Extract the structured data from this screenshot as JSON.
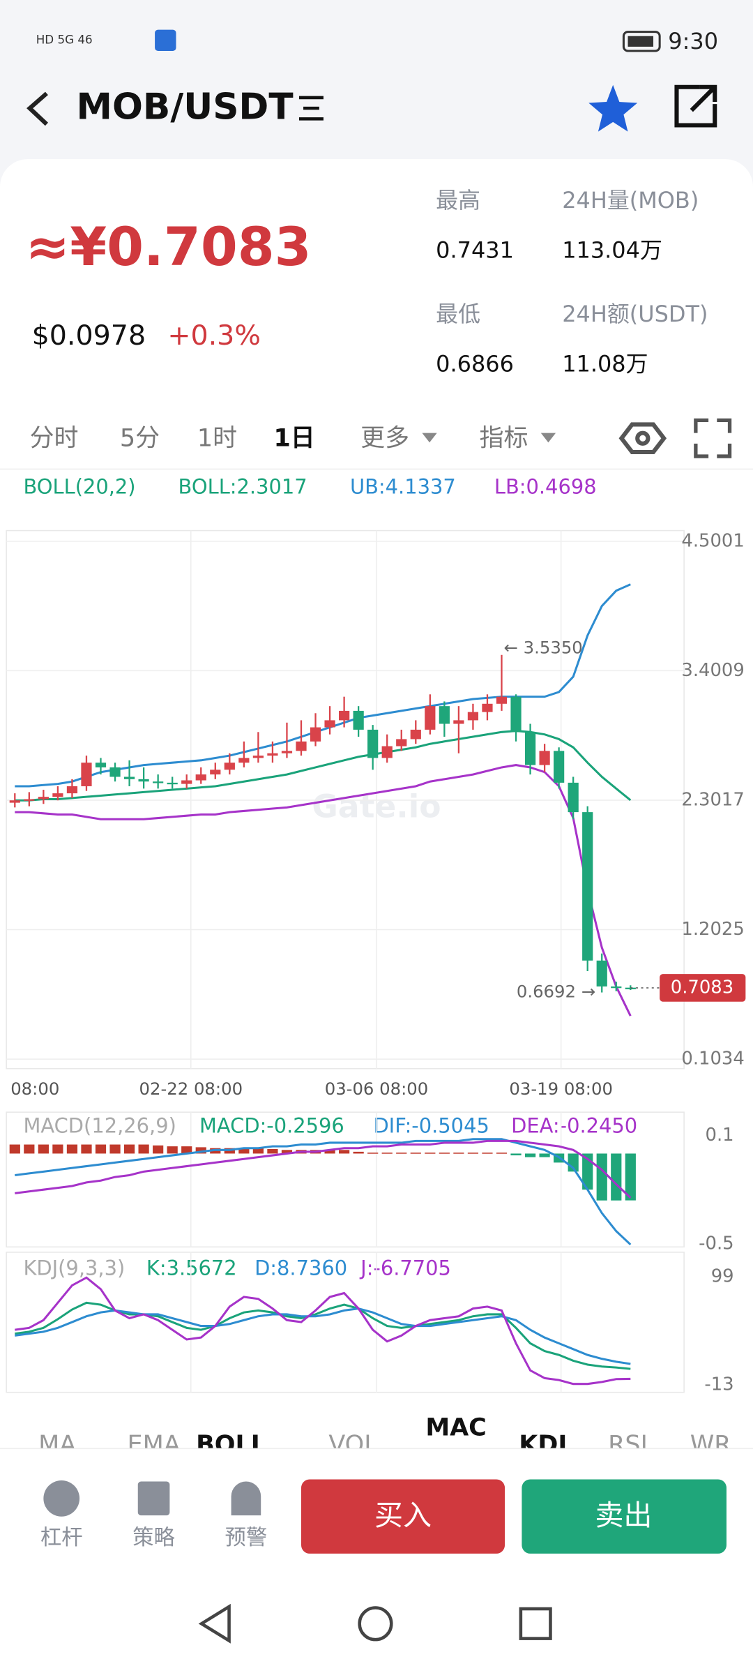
{
  "status_bar": {
    "time": "9:30"
  },
  "header": {
    "title": "MOB/USDT"
  },
  "ticker": {
    "price": "≈¥0.7083",
    "usd_price": "$0.0978",
    "change": "+0.3%",
    "stats": [
      {
        "label": "最高",
        "value": "0.7431"
      },
      {
        "label": "24H量(MOB)",
        "value": "113.04万"
      },
      {
        "label": "最低",
        "value": "0.6866"
      },
      {
        "label": "24H额(USDT)",
        "value": "11.08万"
      }
    ]
  },
  "timeframe_tabs": [
    "分时",
    "5分",
    "1时",
    "1日",
    "更多",
    "指标"
  ],
  "chart": {
    "type": "candlestick",
    "legend": [
      "BOLL(20,2)",
      "BOLL:2.3017",
      "UB:4.1337",
      "LB:0.4698"
    ],
    "open": [
      2.28,
      2.3,
      2.31,
      2.33,
      2.36,
      2.42,
      2.62,
      2.58,
      2.5,
      2.48,
      2.46,
      2.45,
      2.44,
      2.47,
      2.52,
      2.56,
      2.62,
      2.66,
      2.68,
      2.7,
      2.72,
      2.8,
      2.92,
      2.98,
      3.06,
      2.9,
      2.66,
      2.76,
      2.82,
      2.9,
      3.1,
      2.95,
      2.98,
      3.05,
      3.12,
      3.18,
      2.88,
      2.6,
      2.72,
      2.45,
      2.2,
      0.94,
      0.72,
      0.71
    ],
    "high": [
      2.36,
      2.37,
      2.39,
      2.42,
      2.48,
      2.68,
      2.66,
      2.62,
      2.64,
      2.58,
      2.52,
      2.5,
      2.52,
      2.58,
      2.62,
      2.7,
      2.8,
      2.88,
      2.8,
      2.96,
      2.98,
      3.04,
      3.1,
      3.18,
      3.1,
      2.94,
      2.86,
      2.9,
      2.98,
      3.2,
      3.14,
      3.1,
      3.12,
      3.2,
      3.535,
      3.2,
      2.95,
      2.78,
      2.75,
      2.5,
      2.25,
      1.0,
      0.76,
      0.73
    ],
    "low": [
      2.24,
      2.25,
      2.27,
      2.3,
      2.32,
      2.38,
      2.52,
      2.46,
      2.42,
      2.4,
      2.4,
      2.4,
      2.4,
      2.44,
      2.48,
      2.52,
      2.58,
      2.62,
      2.62,
      2.66,
      2.68,
      2.76,
      2.86,
      2.92,
      2.84,
      2.56,
      2.62,
      2.72,
      2.78,
      2.86,
      2.84,
      2.7,
      2.9,
      2.98,
      3.06,
      2.8,
      2.52,
      2.54,
      2.4,
      2.14,
      0.85,
      0.6692,
      0.68,
      0.69
    ],
    "close": [
      2.3,
      2.31,
      2.33,
      2.36,
      2.42,
      2.62,
      2.58,
      2.5,
      2.48,
      2.46,
      2.45,
      2.44,
      2.47,
      2.52,
      2.56,
      2.62,
      2.66,
      2.68,
      2.7,
      2.72,
      2.8,
      2.92,
      2.98,
      3.06,
      2.9,
      2.66,
      2.76,
      2.82,
      2.9,
      3.1,
      2.95,
      2.98,
      3.05,
      3.12,
      3.18,
      2.88,
      2.6,
      2.72,
      2.45,
      2.2,
      0.94,
      0.72,
      0.71,
      0.7083
    ],
    "boll_mid": [
      2.3,
      2.3,
      2.31,
      2.31,
      2.32,
      2.33,
      2.34,
      2.35,
      2.36,
      2.37,
      2.38,
      2.39,
      2.4,
      2.41,
      2.42,
      2.44,
      2.46,
      2.48,
      2.5,
      2.52,
      2.55,
      2.58,
      2.61,
      2.64,
      2.67,
      2.69,
      2.71,
      2.73,
      2.75,
      2.78,
      2.8,
      2.82,
      2.84,
      2.86,
      2.88,
      2.89,
      2.88,
      2.86,
      2.82,
      2.75,
      2.62,
      2.5,
      2.4,
      2.3017
    ],
    "boll_upper": [
      2.42,
      2.42,
      2.43,
      2.44,
      2.46,
      2.5,
      2.54,
      2.56,
      2.58,
      2.6,
      2.61,
      2.62,
      2.63,
      2.64,
      2.66,
      2.68,
      2.71,
      2.74,
      2.77,
      2.8,
      2.84,
      2.88,
      2.92,
      2.96,
      3.0,
      3.02,
      3.04,
      3.06,
      3.08,
      3.1,
      3.12,
      3.14,
      3.16,
      3.17,
      3.18,
      3.18,
      3.18,
      3.18,
      3.22,
      3.35,
      3.7,
      3.95,
      4.08,
      4.1337
    ],
    "boll_lower": [
      2.2,
      2.2,
      2.19,
      2.18,
      2.18,
      2.16,
      2.14,
      2.14,
      2.14,
      2.14,
      2.15,
      2.16,
      2.17,
      2.18,
      2.18,
      2.2,
      2.21,
      2.22,
      2.23,
      2.24,
      2.26,
      2.28,
      2.3,
      2.32,
      2.34,
      2.36,
      2.38,
      2.4,
      2.42,
      2.46,
      2.48,
      2.5,
      2.52,
      2.55,
      2.58,
      2.6,
      2.58,
      2.54,
      2.42,
      2.15,
      1.54,
      1.05,
      0.72,
      0.4698
    ],
    "ylim": [
      0.1034,
      4.5001
    ],
    "yticks": [
      4.5001,
      3.4009,
      2.3017,
      1.2025,
      0.1034
    ],
    "x_labels": [
      "08:00",
      "02-22 08:00",
      "03-06 08:00",
      "03-19 08:00"
    ],
    "max_annotation": {
      "value": 3.535,
      "label": "← 3.5350"
    },
    "min_annotation": {
      "value": 0.6692,
      "label": "0.6692 →"
    },
    "last_price": 0.7083,
    "watermark": "Gate.io"
  },
  "macd": {
    "legend": [
      "MACD(12,26,9)",
      "MACD:-0.2596",
      "DIF:-0.5045",
      "DEA:-0.2450"
    ],
    "histogram": [
      0.05,
      0.05,
      0.05,
      0.05,
      0.05,
      0.05,
      0.05,
      0.05,
      0.05,
      0.05,
      0.045,
      0.04,
      0.04,
      0.035,
      0.03,
      0.03,
      0.03,
      0.03,
      0.025,
      0.02,
      0.02,
      0.02,
      0.02,
      0.02,
      0.01,
      0.005,
      0.005,
      0.005,
      0.005,
      0.005,
      0.005,
      0.005,
      0.005,
      0.005,
      0.005,
      -0.01,
      -0.02,
      -0.02,
      -0.05,
      -0.1,
      -0.2,
      -0.26,
      -0.26,
      -0.2596
    ],
    "dif": [
      -0.12,
      -0.11,
      -0.1,
      -0.09,
      -0.08,
      -0.07,
      -0.06,
      -0.05,
      -0.04,
      -0.03,
      -0.02,
      -0.01,
      0,
      0.01,
      0.02,
      0.02,
      0.03,
      0.03,
      0.04,
      0.04,
      0.05,
      0.05,
      0.06,
      0.06,
      0.06,
      0.06,
      0.06,
      0.06,
      0.07,
      0.07,
      0.07,
      0.07,
      0.08,
      0.08,
      0.08,
      0.06,
      0.04,
      0.02,
      -0.02,
      -0.08,
      -0.2,
      -0.33,
      -0.43,
      -0.5045
    ],
    "dea": [
      -0.22,
      -0.21,
      -0.2,
      -0.19,
      -0.18,
      -0.16,
      -0.15,
      -0.13,
      -0.12,
      -0.1,
      -0.09,
      -0.08,
      -0.07,
      -0.06,
      -0.05,
      -0.04,
      -0.03,
      -0.02,
      -0.01,
      0,
      0.01,
      0.01,
      0.02,
      0.03,
      0.03,
      0.04,
      0.04,
      0.05,
      0.05,
      0.05,
      0.06,
      0.06,
      0.06,
      0.07,
      0.07,
      0.07,
      0.06,
      0.05,
      0.04,
      0.02,
      -0.03,
      -0.09,
      -0.17,
      -0.245
    ],
    "ylim": [
      -0.5,
      0.1
    ],
    "yticks": [
      0.1,
      -0.5
    ]
  },
  "kdj": {
    "legend": [
      "KDJ(9,3,3)",
      "K:3.5672",
      "D:8.7360",
      "J:-6.7705"
    ],
    "k": [
      40,
      42,
      46,
      55,
      65,
      72,
      70,
      64,
      60,
      60,
      58,
      52,
      46,
      44,
      48,
      56,
      62,
      64,
      62,
      58,
      56,
      60,
      66,
      70,
      66,
      56,
      48,
      46,
      48,
      50,
      52,
      54,
      58,
      60,
      60,
      46,
      30,
      22,
      18,
      12,
      8,
      6,
      5,
      3.5672
    ],
    "d": [
      38,
      40,
      42,
      46,
      52,
      58,
      62,
      64,
      62,
      60,
      60,
      56,
      52,
      48,
      48,
      50,
      54,
      58,
      60,
      60,
      58,
      58,
      60,
      64,
      66,
      62,
      56,
      50,
      48,
      48,
      50,
      52,
      54,
      56,
      58,
      54,
      44,
      36,
      30,
      24,
      18,
      14,
      11,
      8.736
    ],
    "j": [
      44,
      46,
      54,
      72,
      90,
      98,
      86,
      64,
      56,
      60,
      54,
      44,
      34,
      36,
      48,
      68,
      78,
      76,
      66,
      54,
      52,
      64,
      78,
      82,
      66,
      44,
      32,
      38,
      48,
      54,
      56,
      58,
      66,
      68,
      64,
      30,
      2,
      -6,
      -8,
      -12,
      -12,
      -10,
      -7,
      -6.7705
    ],
    "ylim": [
      -13,
      99
    ],
    "yticks": [
      99,
      -13
    ]
  },
  "indicator_tabs": [
    "MA",
    "EMA",
    "BOLL",
    "VOL",
    "MAC",
    "KDJ",
    "RSI",
    "WR"
  ],
  "actions": {
    "tools": [
      "杠杆",
      "策略",
      "预警"
    ],
    "buy": "买入",
    "sell": "卖出"
  }
}
